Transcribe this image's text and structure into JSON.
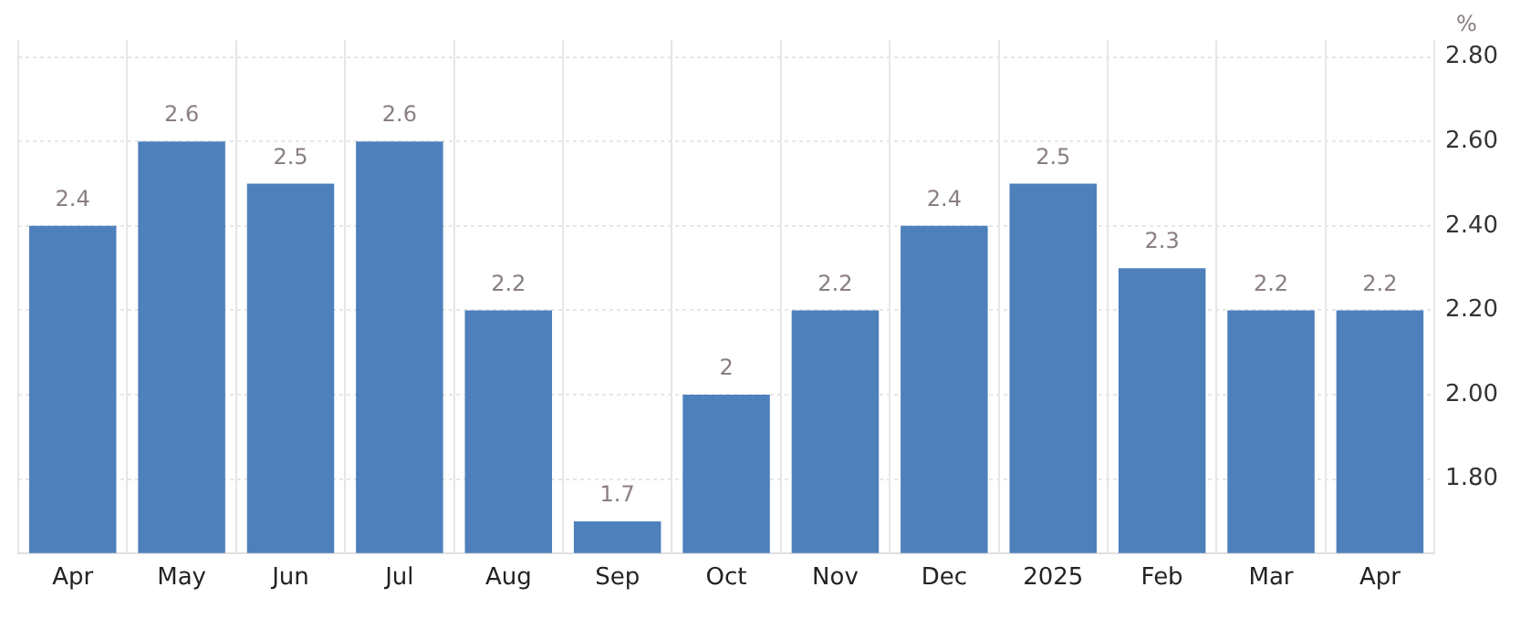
{
  "chart_data": {
    "type": "bar",
    "ylabel": "%",
    "categories": [
      "Apr",
      "May",
      "Jun",
      "Jul",
      "Aug",
      "Sep",
      "Oct",
      "Nov",
      "Dec",
      "2025",
      "Feb",
      "Mar",
      "Apr"
    ],
    "values": [
      2.4,
      2.6,
      2.5,
      2.6,
      2.2,
      1.7,
      2,
      2.2,
      2.4,
      2.5,
      2.3,
      2.2,
      2.2
    ],
    "color": "#4e80bc",
    "ylim": [
      1.625,
      2.84
    ],
    "yticks": [
      {
        "value": 1.8,
        "label": "1.80"
      },
      {
        "value": 2,
        "label": "2.00"
      },
      {
        "value": 2.2,
        "label": "2.20"
      },
      {
        "value": 2.4,
        "label": "2.40"
      },
      {
        "value": 2.6,
        "label": "2.60"
      },
      {
        "value": 2.8,
        "label": "2.80"
      }
    ],
    "grid": true,
    "data_labels": true,
    "legend": false
  }
}
